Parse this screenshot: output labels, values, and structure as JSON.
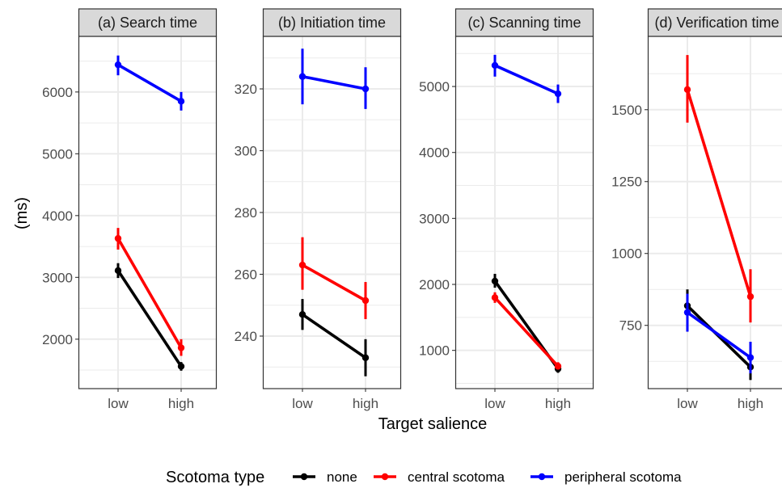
{
  "chart_data": {
    "type": "line",
    "xlabel": "Target salience",
    "ylabel": "(ms)",
    "categories": [
      "low",
      "high"
    ],
    "grid": true,
    "legend": {
      "title": "Scotoma type",
      "placement": "bottom",
      "entries": [
        {
          "name": "none",
          "color": "#000000"
        },
        {
          "name": "central scotoma",
          "color": "#ff0000"
        },
        {
          "name": "peripheral scotoma",
          "color": "#0000ff"
        }
      ]
    },
    "panels": [
      {
        "title": "(a) Search time",
        "ylim": [
          1200,
          6900
        ],
        "yticks": [
          2000,
          3000,
          4000,
          5000,
          6000
        ],
        "series": [
          {
            "name": "none",
            "color": "#000000",
            "values": [
              3110,
              1560
            ],
            "err_lo": [
              2990,
              1490
            ],
            "err_hi": [
              3230,
              1630
            ]
          },
          {
            "name": "central scotoma",
            "color": "#ff0000",
            "values": [
              3630,
              1860
            ],
            "err_lo": [
              3450,
              1730
            ],
            "err_hi": [
              3800,
              2000
            ]
          },
          {
            "name": "peripheral scotoma",
            "color": "#0000ff",
            "values": [
              6440,
              5850
            ],
            "err_lo": [
              6270,
              5700
            ],
            "err_hi": [
              6590,
              6000
            ]
          }
        ]
      },
      {
        "title": "(b) Initiation time",
        "ylim": [
          223,
          337
        ],
        "yticks": [
          240,
          260,
          280,
          300,
          320
        ],
        "series": [
          {
            "name": "none",
            "color": "#000000",
            "values": [
              247,
              233
            ],
            "err_lo": [
              242,
              227
            ],
            "err_hi": [
              252,
              239
            ]
          },
          {
            "name": "central scotoma",
            "color": "#ff0000",
            "values": [
              263,
              251.5
            ],
            "err_lo": [
              255,
              245.5
            ],
            "err_hi": [
              272,
              257.5
            ]
          },
          {
            "name": "peripheral scotoma",
            "color": "#0000ff",
            "values": [
              324,
              320
            ],
            "err_lo": [
              315,
              313.5
            ],
            "err_hi": [
              333,
              327
            ]
          }
        ]
      },
      {
        "title": "(c) Scanning time",
        "ylim": [
          420,
          5760
        ],
        "yticks": [
          1000,
          2000,
          3000,
          4000,
          5000
        ],
        "series": [
          {
            "name": "none",
            "color": "#000000",
            "values": [
              2050,
              720
            ],
            "err_lo": [
              1950,
              660
            ],
            "err_hi": [
              2160,
              790
            ]
          },
          {
            "name": "central scotoma",
            "color": "#ff0000",
            "values": [
              1800,
              760
            ],
            "err_lo": [
              1720,
              710
            ],
            "err_hi": [
              1880,
              820
            ]
          },
          {
            "name": "peripheral scotoma",
            "color": "#0000ff",
            "values": [
              5320,
              4890
            ],
            "err_lo": [
              5150,
              4750
            ],
            "err_hi": [
              5480,
              5030
            ]
          }
        ]
      },
      {
        "title": "(d) Verification time",
        "ylim": [
          530,
          1755
        ],
        "yticks": [
          750,
          1000,
          1250,
          1500
        ],
        "series": [
          {
            "name": "none",
            "color": "#000000",
            "values": [
              818,
              605
            ],
            "err_lo": [
              765,
              560
            ],
            "err_hi": [
              875,
              655
            ]
          },
          {
            "name": "central scotoma",
            "color": "#ff0000",
            "values": [
              1570,
              850
            ],
            "err_lo": [
              1455,
              760
            ],
            "err_hi": [
              1690,
              945
            ]
          },
          {
            "name": "peripheral scotoma",
            "color": "#0000ff",
            "values": [
              795,
              638
            ],
            "err_lo": [
              728,
              583
            ],
            "err_hi": [
              860,
              693
            ]
          }
        ]
      }
    ]
  }
}
